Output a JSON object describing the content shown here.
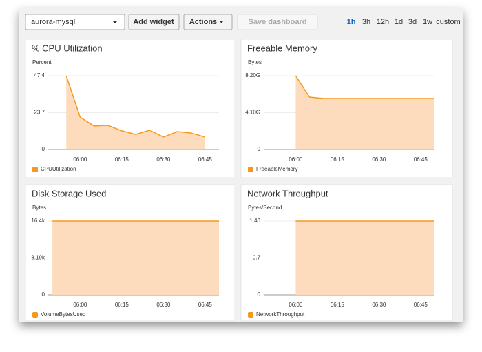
{
  "toolbar": {
    "dashboard": "aurora-mysql",
    "buttons": [
      "Add widget",
      "Actions",
      "Save dashboard"
    ],
    "time_ranges": [
      "1h",
      "3h",
      "12h",
      "1d",
      "3d",
      "1w",
      "custom"
    ],
    "active": "1h"
  },
  "chart_data": [
    {
      "type": "area",
      "title": "% CPU Utilization",
      "ylabel": "Percent",
      "x": [
        "05:55",
        "06:00",
        "06:05",
        "06:10",
        "06:15",
        "06:20",
        "06:25",
        "06:30",
        "06:35",
        "06:40",
        "06:45"
      ],
      "series": [
        {
          "name": "CPUUtilization",
          "color": "#f7981d",
          "values": [
            47.4,
            20.8,
            15.1,
            15.5,
            12,
            9.7,
            12.4,
            8,
            11.5,
            10.6,
            8
          ]
        }
      ],
      "xlim": [
        "05:48",
        "06:50"
      ],
      "xticks": [
        "06:00",
        "06:15",
        "06:30",
        "06:45"
      ],
      "ylim": [
        0,
        47.4
      ],
      "yticks": [
        0,
        23.7,
        47.4
      ],
      "grid": true
    },
    {
      "type": "area",
      "title": "Freeable Memory",
      "ylabel": "Bytes",
      "x": [
        "06:00",
        "06:05",
        "06:10",
        "06:15",
        "06:20",
        "06:25",
        "06:30",
        "06:35",
        "06:40",
        "06:45",
        "06:50"
      ],
      "series": [
        {
          "name": "FreeableMemory",
          "color": "#f7981d",
          "values": [
            8200000000,
            5820000000,
            5670000000,
            5670000000,
            5670000000,
            5670000000,
            5670000000,
            5670000000,
            5670000000,
            5670000000,
            5670000000
          ]
        }
      ],
      "xlim": [
        "05:48",
        "06:50"
      ],
      "xticks": [
        "06:00",
        "06:15",
        "06:30",
        "06:45"
      ],
      "ylim": [
        0,
        8200000000
      ],
      "yticks": [
        0,
        {
          "value": 4100000000,
          "label": "4.10G"
        },
        {
          "value": 8200000000,
          "label": "8.20G"
        }
      ],
      "grid": true
    },
    {
      "type": "area",
      "title": "Disk Storage Used",
      "ylabel": "Bytes",
      "x": [
        "05:50",
        "05:55",
        "06:00",
        "06:05",
        "06:10",
        "06:15",
        "06:20",
        "06:25",
        "06:30",
        "06:35",
        "06:40",
        "06:45",
        "06:50"
      ],
      "series": [
        {
          "name": "VolumeBytesUsed",
          "color": "#f7981d",
          "values": [
            16384,
            16384,
            16384,
            16384,
            16384,
            16384,
            16384,
            16384,
            16384,
            16384,
            16384,
            16384,
            16384
          ]
        }
      ],
      "xlim": [
        "05:48",
        "06:50"
      ],
      "xticks": [
        "06:00",
        "06:15",
        "06:30",
        "06:45"
      ],
      "ylim": [
        0,
        16384
      ],
      "yticks": [
        0,
        {
          "value": 8192,
          "label": "8.19k"
        },
        {
          "value": 16384,
          "label": "16.4k"
        }
      ],
      "grid": true
    },
    {
      "type": "area",
      "title": "Network Throughput",
      "ylabel": "Bytes/Second",
      "x": [
        "06:00",
        "06:05",
        "06:10",
        "06:15",
        "06:20",
        "06:25",
        "06:30",
        "06:35",
        "06:40",
        "06:45",
        "06:50"
      ],
      "series": [
        {
          "name": "NetworkThroughput",
          "color": "#f7981d",
          "values": [
            1.4,
            1.4,
            1.4,
            1.4,
            1.4,
            1.4,
            1.4,
            1.4,
            1.4,
            1.4,
            1.4
          ]
        }
      ],
      "xlim": [
        "05:48",
        "06:50"
      ],
      "xticks": [
        "06:00",
        "06:15",
        "06:30",
        "06:45"
      ],
      "ylim": [
        0,
        1.4
      ],
      "yticks": [
        0,
        0.7,
        {
          "value": 1.4,
          "label": "1.40"
        }
      ],
      "grid": true
    }
  ]
}
